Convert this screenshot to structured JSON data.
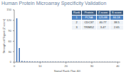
{
  "chart_data": {
    "type": "bar",
    "title": "Human Protein Microarray Specificity Validation",
    "x_label": "Signal Rank (Top 40)",
    "y_label": "Strength of Signal (Z score)",
    "x": [
      1,
      2,
      3,
      4,
      5,
      6,
      7,
      8,
      9,
      10,
      11,
      12,
      13,
      14,
      15,
      16,
      17,
      18,
      19,
      20,
      21,
      22,
      23,
      24,
      25,
      26,
      27,
      28,
      29,
      30,
      31,
      32,
      33,
      34,
      35,
      36,
      37,
      38,
      39,
      40
    ],
    "values": [
      125.88,
      40.77,
      3.47,
      2.9,
      2.6,
      2.4,
      2.2,
      2.1,
      2.0,
      1.9,
      1.85,
      1.8,
      1.75,
      1.7,
      1.65,
      1.6,
      1.55,
      1.5,
      1.45,
      1.4,
      1.38,
      1.35,
      1.32,
      1.3,
      1.28,
      1.25,
      1.22,
      1.2,
      1.18,
      1.15,
      1.12,
      1.1,
      1.08,
      1.05,
      1.02,
      1.0,
      0.98,
      0.95,
      0.92,
      0.9
    ],
    "color": "#3d6fb6",
    "xlim": [
      0,
      41
    ],
    "xticks": [
      0,
      10,
      20,
      30,
      40
    ],
    "ylim": [
      0,
      150
    ],
    "yticks": [
      0,
      30,
      60,
      90,
      120,
      150
    ],
    "table": {
      "columns": [
        "Rank",
        "Protein",
        "Z score",
        "S score"
      ],
      "rows": [
        [
          "1",
          "PCNA",
          "125.88",
          "84.18"
        ],
        [
          "2",
          "CDC37",
          "40.77",
          "38.5"
        ],
        [
          "3",
          "TRIM52",
          "3.47",
          "2.65"
        ]
      ]
    }
  }
}
